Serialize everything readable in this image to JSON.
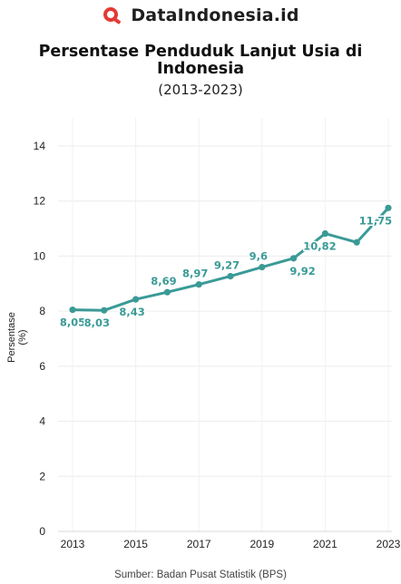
{
  "brand": {
    "name": "DataIndonesia.id",
    "logo_icon": "magnifier-logo-icon",
    "logo_color": "#e53935"
  },
  "chart_data": {
    "type": "line",
    "title": "Persentase Penduduk Lanjut Usia di Indonesia",
    "subtitle": "(2013-2023)",
    "xlabel": "",
    "ylabel": "Persentase (%)",
    "x": [
      2013,
      2014,
      2015,
      2016,
      2017,
      2018,
      2019,
      2020,
      2021,
      2022,
      2023
    ],
    "series": [
      {
        "values": [
          8.05,
          8.03,
          8.43,
          8.69,
          8.97,
          9.27,
          9.6,
          9.92,
          10.82,
          10.5,
          11.75
        ]
      }
    ],
    "data_labels": [
      "8,05",
      "8,03",
      "8,43",
      "8,69",
      "8,97",
      "9,27",
      "9,6",
      "9,92",
      "10,82",
      "",
      "11,75"
    ],
    "xticks": [
      "2013",
      "2015",
      "2017",
      "2019",
      "2021",
      "2023"
    ],
    "yticks": [
      "0",
      "2",
      "4",
      "6",
      "8",
      "10",
      "12",
      "14"
    ],
    "ylim": [
      0,
      14
    ],
    "xlim": [
      2013,
      2023
    ],
    "grid": true,
    "legend": "none",
    "line_color": "#3a9a96"
  },
  "source": "Sumber: Badan Pusat Statistik (BPS)"
}
